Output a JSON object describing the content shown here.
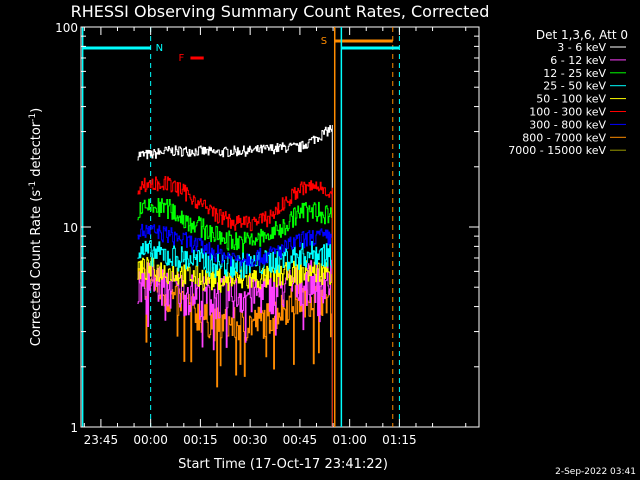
{
  "chart_data": {
    "type": "line",
    "title": "RHESSI Observing Summary Count Rates, Corrected",
    "xlabel": "Start Time (17-Oct-17 23:41:22)",
    "ylabel": "Corrected Count Rate (s⁻¹ detector⁻¹)",
    "ylabel_main": "Corrected Count Rate (s",
    "ylabel_sup1": "-1",
    "ylabel_mid": " detector",
    "ylabel_sup2": "-1",
    "ylabel_end": ")",
    "yscale": "log",
    "ylim": [
      1,
      100
    ],
    "xlim_minutes": [
      -21,
      99
    ],
    "x_unit": "minutes relative to 00:00",
    "x_ticks": [
      {
        "label": "23:45",
        "value": -15
      },
      {
        "label": "00:00",
        "value": 0
      },
      {
        "label": "00:15",
        "value": 15
      },
      {
        "label": "00:30",
        "value": 30
      },
      {
        "label": "00:45",
        "value": 45
      },
      {
        "label": "01:00",
        "value": 60
      },
      {
        "label": "01:15",
        "value": 75
      }
    ],
    "y_ticks": [
      {
        "label": "1",
        "value": 1
      },
      {
        "label": "10",
        "value": 10
      },
      {
        "label": "100",
        "value": 100
      }
    ],
    "legend_title": "Det 1,3,6, Att 0",
    "series": [
      {
        "name": "3 - 6 keV",
        "color": "#ffffff",
        "x": [
          -4,
          0,
          5,
          10,
          15,
          20,
          25,
          30,
          35,
          40,
          45,
          50,
          53,
          54,
          55
        ],
        "y": [
          23,
          23,
          24,
          24,
          24,
          23.5,
          24,
          24,
          24.5,
          25,
          25,
          28,
          30,
          31,
          31
        ]
      },
      {
        "name": "6 - 12 keV",
        "color": "#ff40ff",
        "x": [
          -4,
          0,
          5,
          10,
          15,
          20,
          25,
          30,
          35,
          40,
          45,
          50,
          55
        ],
        "y": [
          5.5,
          5.5,
          5,
          4.8,
          4.6,
          4.5,
          4.6,
          4.7,
          4.8,
          5,
          5.3,
          5.5,
          5.5
        ]
      },
      {
        "name": "12 - 25 keV",
        "color": "#00ff00",
        "x": [
          -4,
          0,
          5,
          10,
          15,
          20,
          25,
          30,
          35,
          40,
          45,
          50,
          55
        ],
        "y": [
          12,
          12.5,
          12.5,
          11,
          10,
          9,
          8.5,
          8.5,
          9,
          10,
          12,
          12,
          11.5
        ]
      },
      {
        "name": "25 - 50 keV",
        "color": "#00ffff",
        "x": [
          -4,
          0,
          5,
          10,
          15,
          20,
          25,
          30,
          35,
          40,
          45,
          50,
          55
        ],
        "y": [
          7.5,
          7.5,
          7.2,
          7,
          6.8,
          6.5,
          6.5,
          6.5,
          6.7,
          7,
          7.2,
          7.5,
          7.3
        ]
      },
      {
        "name": "50 - 100 keV",
        "color": "#ffff00",
        "x": [
          -4,
          0,
          5,
          10,
          15,
          20,
          25,
          30,
          35,
          40,
          45,
          50,
          55
        ],
        "y": [
          6.2,
          6.2,
          6,
          5.8,
          5.6,
          5.5,
          5.4,
          5.5,
          5.6,
          5.8,
          6,
          6,
          6
        ]
      },
      {
        "name": "100 - 300 keV",
        "color": "#ff0000",
        "x": [
          -4,
          0,
          5,
          10,
          15,
          20,
          25,
          30,
          35,
          40,
          45,
          50,
          55
        ],
        "y": [
          16,
          16.5,
          16.5,
          15,
          13,
          11.5,
          10.5,
          10.5,
          11,
          13,
          15.5,
          16,
          15
        ]
      },
      {
        "name": "300 - 800 keV",
        "color": "#0000ff",
        "x": [
          -4,
          0,
          5,
          10,
          15,
          20,
          25,
          30,
          35,
          40,
          45,
          50,
          55
        ],
        "y": [
          9.5,
          9.5,
          9.2,
          8.6,
          8,
          7.4,
          7,
          7,
          7.2,
          7.8,
          8.6,
          9,
          8.8
        ]
      },
      {
        "name": "800 - 7000 keV",
        "color": "#ff8c00",
        "x": [
          -4,
          0,
          5,
          10,
          15,
          20,
          25,
          30,
          35,
          40,
          45,
          50,
          55
        ],
        "y": [
          5.5,
          5.5,
          4.5,
          4.2,
          3.6,
          3.3,
          3.3,
          3.3,
          3.5,
          4,
          4.4,
          4.5,
          4.5
        ]
      },
      {
        "name": "7000 - 15000 keV",
        "color": "#9a9a00",
        "x": [],
        "y": []
      }
    ],
    "annotations": {
      "night_label": "N",
      "flare_label": "F",
      "saa_label": "S"
    },
    "footer_date": "2-Sep-2022 03:41"
  }
}
